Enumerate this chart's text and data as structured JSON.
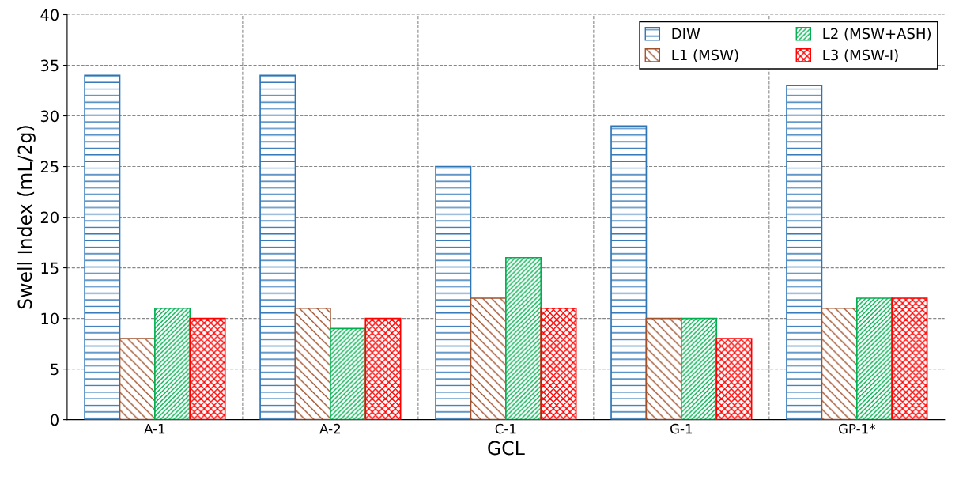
{
  "chart_data": {
    "type": "bar",
    "xlabel": "GCL",
    "ylabel": "Swell Index (mL/2g)",
    "categories": [
      "A-1",
      "A-2",
      "C-1",
      "G-1",
      "GP-1*"
    ],
    "series": [
      {
        "name": "DIW",
        "color": "#2e75b6",
        "values": [
          34,
          34,
          25,
          29,
          33
        ]
      },
      {
        "name": "L1 (MSW)",
        "color": "#a0522d",
        "values": [
          8,
          11,
          12,
          10,
          11
        ]
      },
      {
        "name": "L2 (MSW+ASH)",
        "color": "#00b050",
        "values": [
          11,
          9,
          16,
          10,
          12
        ]
      },
      {
        "name": "L3 (MSW-I)",
        "color": "#ff0000",
        "values": [
          10,
          10,
          11,
          8,
          12
        ]
      }
    ],
    "ylim": [
      0,
      40
    ],
    "yticks": [
      0,
      5,
      10,
      15,
      20,
      25,
      30,
      35,
      40
    ],
    "grid": true,
    "legend": "top right"
  }
}
